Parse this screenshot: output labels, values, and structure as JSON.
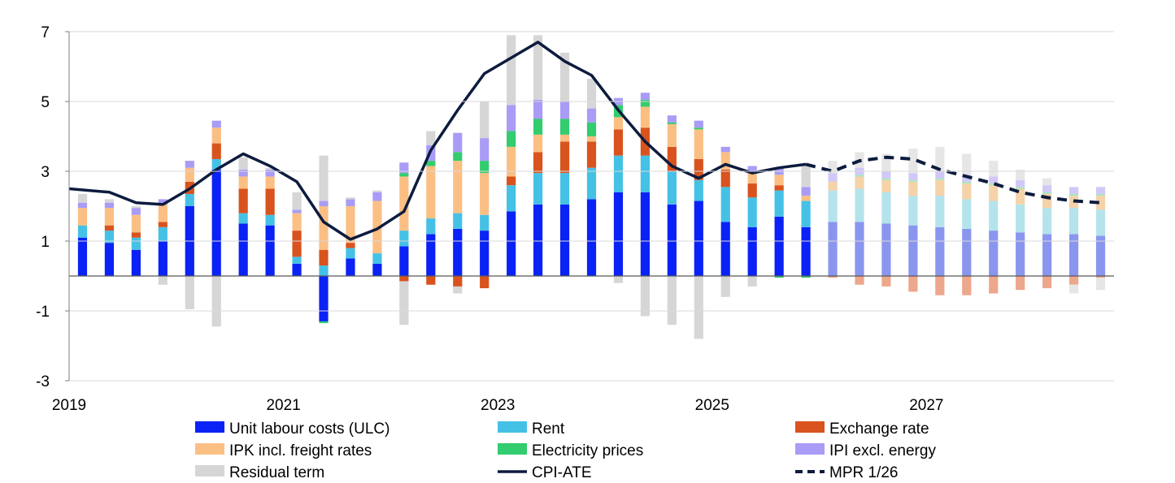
{
  "chart_data": {
    "type": "bar",
    "stacked": true,
    "title": "",
    "xlabel": "",
    "ylabel": "",
    "ylim": [
      -3,
      7
    ],
    "y_ticks": [
      -3,
      -1,
      1,
      3,
      5,
      7
    ],
    "x_tick_labels": [
      {
        "label": "2019",
        "index": 0
      },
      {
        "label": "2021",
        "index": 8
      },
      {
        "label": "2023",
        "index": 16
      },
      {
        "label": "2025",
        "index": 24
      },
      {
        "label": "2027",
        "index": 32
      }
    ],
    "forecast_start_index": 28,
    "categories": [
      "2019Q1",
      "2019Q2",
      "2019Q3",
      "2019Q4",
      "2020Q1",
      "2020Q2",
      "2020Q3",
      "2020Q4",
      "2021Q1",
      "2021Q2",
      "2021Q3",
      "2021Q4",
      "2022Q1",
      "2022Q2",
      "2022Q3",
      "2022Q4",
      "2023Q1",
      "2023Q2",
      "2023Q3",
      "2023Q4",
      "2024Q1",
      "2024Q2",
      "2024Q3",
      "2024Q4",
      "2025Q1",
      "2025Q2",
      "2025Q3",
      "2025Q4",
      "2026Q1",
      "2026Q2",
      "2026Q3",
      "2026Q4",
      "2027Q1",
      "2027Q2",
      "2027Q3",
      "2027Q4",
      "2028Q1",
      "2028Q2",
      "2028Q3"
    ],
    "series": [
      {
        "name": "Unit labour costs (ULC)",
        "color": "#0a22f5",
        "forecast_color": "#8a96ee",
        "values": [
          1.1,
          0.95,
          0.75,
          1.0,
          2.0,
          3.05,
          1.5,
          1.45,
          0.35,
          -1.3,
          0.5,
          0.35,
          0.85,
          1.2,
          1.35,
          1.3,
          1.85,
          2.05,
          2.05,
          2.2,
          2.4,
          2.4,
          2.05,
          2.15,
          1.55,
          1.4,
          1.7,
          1.4,
          1.55,
          1.55,
          1.5,
          1.45,
          1.4,
          1.35,
          1.3,
          1.25,
          1.2,
          1.2,
          1.15
        ]
      },
      {
        "name": "Rent",
        "color": "#45c1e6",
        "forecast_color": "#b4e3ec",
        "values": [
          0.35,
          0.35,
          0.35,
          0.4,
          0.35,
          0.3,
          0.3,
          0.3,
          0.2,
          0.3,
          0.3,
          0.3,
          0.45,
          0.45,
          0.45,
          0.45,
          0.75,
          0.9,
          0.9,
          0.9,
          1.05,
          1.05,
          0.95,
          0.6,
          1.0,
          0.85,
          0.75,
          0.75,
          0.9,
          0.95,
          0.9,
          0.85,
          0.9,
          0.85,
          0.85,
          0.8,
          0.75,
          0.75,
          0.75
        ]
      },
      {
        "name": "Exchange rate",
        "color": "#d9531e",
        "forecast_color": "#eda78c",
        "values": [
          0,
          0.15,
          0.15,
          0.15,
          0.35,
          0.45,
          0.7,
          0.75,
          0.75,
          0.45,
          0.15,
          0,
          -0.15,
          -0.25,
          -0.3,
          -0.35,
          0.25,
          0.6,
          0.9,
          0.75,
          0.75,
          0.8,
          0.7,
          0.6,
          0.5,
          0.4,
          0.15,
          0,
          -0.05,
          -0.25,
          -0.3,
          -0.45,
          -0.55,
          -0.55,
          -0.5,
          -0.4,
          -0.35,
          -0.25,
          -0.05
        ]
      },
      {
        "name": "IPK incl. freight rates",
        "color": "#fbbf84",
        "forecast_color": "#f5d2a8",
        "values": [
          0.5,
          0.5,
          0.5,
          0.5,
          0.4,
          0.45,
          0.35,
          0.35,
          0.5,
          1.25,
          1.05,
          1.5,
          1.55,
          1.5,
          1.5,
          1.2,
          0.85,
          0.5,
          0.2,
          0.15,
          0.35,
          0.6,
          0.65,
          0.85,
          0.5,
          0.3,
          0.3,
          0.15,
          0.25,
          0.35,
          0.35,
          0.4,
          0.45,
          0.45,
          0.45,
          0.45,
          0.4,
          0.35,
          0.4
        ]
      },
      {
        "name": "Electricity prices",
        "color": "#33cc6f",
        "forecast_color": "#a8e6c0",
        "values": [
          0,
          0,
          0,
          0,
          0,
          0,
          0,
          0,
          0,
          -0.05,
          0,
          0,
          0.1,
          0.15,
          0.25,
          0.35,
          0.45,
          0.45,
          0.45,
          0.4,
          0.35,
          0.2,
          0.05,
          0.05,
          0,
          0,
          -0.05,
          -0.05,
          0,
          0.05,
          0.05,
          0.05,
          0.05,
          0.05,
          0.05,
          0.05,
          0.05,
          0.05,
          0.05
        ]
      },
      {
        "name": "IPI excl. energy",
        "color": "#a99cf6",
        "forecast_color": "#d1c8f7",
        "values": [
          0.15,
          0.15,
          0.2,
          0.15,
          0.2,
          0.2,
          0.2,
          0.2,
          0.1,
          0.15,
          0.2,
          0.25,
          0.3,
          0.45,
          0.55,
          0.65,
          0.75,
          0.55,
          0.5,
          0.4,
          0.2,
          0.2,
          0.2,
          0.2,
          0.15,
          0.2,
          0.2,
          0.25,
          0.25,
          0.2,
          0.2,
          0.2,
          0.2,
          0.2,
          0.2,
          0.2,
          0.2,
          0.2,
          0.2
        ]
      },
      {
        "name": "Residual term",
        "color": "#d6d6d6",
        "forecast_color": "#e6e6e6",
        "values": [
          0.25,
          0.1,
          0.05,
          -0.25,
          -0.95,
          -1.45,
          0.35,
          0.05,
          0.5,
          1.3,
          0.05,
          0.05,
          -1.25,
          0.4,
          -0.2,
          1.05,
          2.0,
          1.85,
          1.4,
          0.85,
          -0.2,
          -1.15,
          -1.4,
          -1.8,
          -0.6,
          -0.3,
          0,
          0.65,
          0.35,
          0.45,
          0.5,
          0.7,
          0.7,
          0.6,
          0.45,
          0.3,
          0.2,
          -0.25,
          -0.35
        ]
      }
    ],
    "lines": [
      {
        "name": "CPI-ATE",
        "color": "#0d1b3e",
        "style": "solid",
        "values": [
          2.5,
          2.4,
          2.1,
          2.05,
          2.5,
          3.05,
          3.5,
          3.15,
          2.7,
          1.55,
          1.05,
          1.35,
          1.85,
          3.6,
          4.75,
          5.8,
          6.25,
          6.7,
          6.15,
          5.75,
          4.75,
          3.85,
          3.15,
          2.8,
          3.2,
          2.95,
          3.1,
          3.2
        ]
      },
      {
        "name": "MPR 1/26",
        "color": "#0d1b3e",
        "style": "dashed",
        "start_index": 27,
        "values": [
          3.2,
          3.0,
          3.3,
          3.4,
          3.35,
          3.05,
          2.85,
          2.65,
          2.4,
          2.25,
          2.15,
          2.1
        ]
      }
    ],
    "legend": {
      "position": "bottom",
      "rows": [
        [
          "Unit labour costs (ULC)",
          "Rent",
          "Exchange rate"
        ],
        [
          "IPK incl. freight rates",
          "Electricity prices",
          "IPI excl. energy"
        ],
        [
          "Residual term",
          "CPI-ATE",
          "MPR 1/26"
        ]
      ]
    }
  }
}
